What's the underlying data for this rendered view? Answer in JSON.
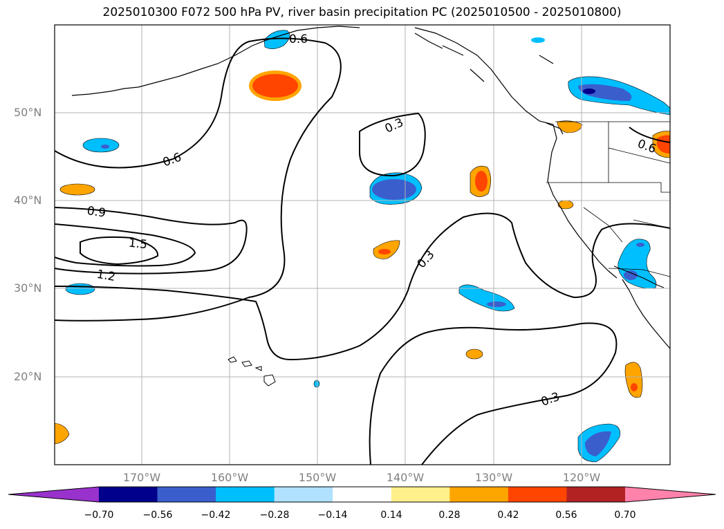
{
  "title": "2025010300 F072 500 hPa PV, river basin precipitation PC (2025010500 - 2025010800)",
  "lat_labels": [
    "50°N",
    "40°N",
    "30°N",
    "20°N"
  ],
  "lon_labels": [
    "170°W",
    "160°W",
    "150°W",
    "140°W",
    "130°W",
    "120°W"
  ],
  "contour_labels": [
    "0.6",
    "0.3",
    "0.6",
    "0.9",
    "1.5",
    "1.2",
    "0.3",
    "0.3",
    "0.6"
  ],
  "colorbar": {
    "ticks": [
      "−0.70",
      "−0.56",
      "−0.42",
      "−0.28",
      "−0.14",
      "0.14",
      "0.28",
      "0.42",
      "0.56",
      "0.70"
    ],
    "colors": [
      "#9932cc",
      "#00008b",
      "#3a5fcd",
      "#00bfff",
      "#b0e2ff",
      "#ffffff",
      "#fff08c",
      "#ffa500",
      "#ff4500",
      "#b22222",
      "#ff82ab"
    ]
  }
}
